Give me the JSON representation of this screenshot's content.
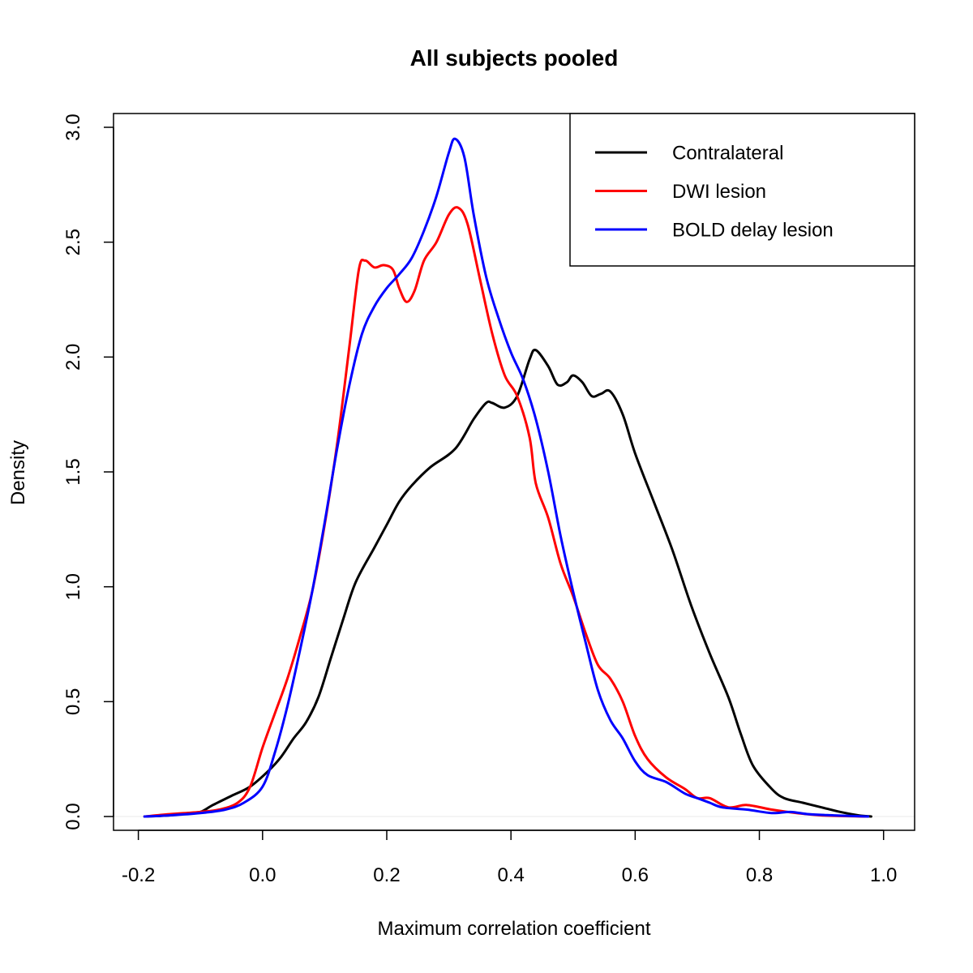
{
  "chart_data": {
    "type": "line",
    "title": "All subjects pooled",
    "xlabel": "Maximum correlation coefficient",
    "ylabel": "Density",
    "xlim": [
      -0.24,
      1.05
    ],
    "ylim": [
      -0.06,
      3.06
    ],
    "x_ticks": [
      -0.2,
      0.0,
      0.2,
      0.4,
      0.6,
      0.8,
      1.0
    ],
    "x_tick_labels": [
      "-0.2",
      "0.0",
      "0.2",
      "0.4",
      "0.6",
      "0.8",
      "1.0"
    ],
    "y_ticks": [
      0.0,
      0.5,
      1.0,
      1.5,
      2.0,
      2.5,
      3.0
    ],
    "y_tick_labels": [
      "0.0",
      "0.5",
      "1.0",
      "1.5",
      "2.0",
      "2.5",
      "3.0"
    ],
    "grid": false,
    "legend_position": "top-right",
    "baseline": 0,
    "series": [
      {
        "name": "Contralateral",
        "color": "#000000",
        "points": [
          [
            -0.19,
            0.0
          ],
          [
            -0.15,
            0.005
          ],
          [
            -0.12,
            0.015
          ],
          [
            -0.1,
            0.02
          ],
          [
            -0.08,
            0.05
          ],
          [
            -0.05,
            0.09
          ],
          [
            -0.02,
            0.13
          ],
          [
            0.01,
            0.2
          ],
          [
            0.03,
            0.26
          ],
          [
            0.05,
            0.34
          ],
          [
            0.07,
            0.41
          ],
          [
            0.09,
            0.52
          ],
          [
            0.11,
            0.69
          ],
          [
            0.13,
            0.86
          ],
          [
            0.15,
            1.02
          ],
          [
            0.18,
            1.17
          ],
          [
            0.2,
            1.27
          ],
          [
            0.22,
            1.37
          ],
          [
            0.24,
            1.44
          ],
          [
            0.27,
            1.52
          ],
          [
            0.31,
            1.6
          ],
          [
            0.34,
            1.73
          ],
          [
            0.36,
            1.8
          ],
          [
            0.37,
            1.8
          ],
          [
            0.39,
            1.78
          ],
          [
            0.41,
            1.83
          ],
          [
            0.43,
            1.99
          ],
          [
            0.44,
            2.03
          ],
          [
            0.46,
            1.96
          ],
          [
            0.475,
            1.88
          ],
          [
            0.49,
            1.89
          ],
          [
            0.5,
            1.92
          ],
          [
            0.515,
            1.89
          ],
          [
            0.53,
            1.83
          ],
          [
            0.545,
            1.84
          ],
          [
            0.56,
            1.85
          ],
          [
            0.58,
            1.75
          ],
          [
            0.6,
            1.58
          ],
          [
            0.63,
            1.37
          ],
          [
            0.66,
            1.16
          ],
          [
            0.69,
            0.92
          ],
          [
            0.72,
            0.71
          ],
          [
            0.75,
            0.52
          ],
          [
            0.77,
            0.36
          ],
          [
            0.79,
            0.22
          ],
          [
            0.82,
            0.12
          ],
          [
            0.84,
            0.08
          ],
          [
            0.87,
            0.06
          ],
          [
            0.9,
            0.04
          ],
          [
            0.93,
            0.02
          ],
          [
            0.96,
            0.005
          ],
          [
            0.98,
            0.0
          ]
        ]
      },
      {
        "name": "DWI lesion",
        "color": "#ff0000",
        "points": [
          [
            -0.19,
            0.0
          ],
          [
            -0.15,
            0.01
          ],
          [
            -0.1,
            0.02
          ],
          [
            -0.07,
            0.03
          ],
          [
            -0.04,
            0.06
          ],
          [
            -0.02,
            0.13
          ],
          [
            0.0,
            0.3
          ],
          [
            0.02,
            0.45
          ],
          [
            0.04,
            0.6
          ],
          [
            0.06,
            0.78
          ],
          [
            0.08,
            0.98
          ],
          [
            0.1,
            1.27
          ],
          [
            0.12,
            1.62
          ],
          [
            0.14,
            2.05
          ],
          [
            0.155,
            2.38
          ],
          [
            0.165,
            2.42
          ],
          [
            0.18,
            2.39
          ],
          [
            0.195,
            2.4
          ],
          [
            0.21,
            2.38
          ],
          [
            0.22,
            2.3
          ],
          [
            0.232,
            2.24
          ],
          [
            0.245,
            2.29
          ],
          [
            0.26,
            2.42
          ],
          [
            0.28,
            2.5
          ],
          [
            0.3,
            2.62
          ],
          [
            0.315,
            2.65
          ],
          [
            0.33,
            2.58
          ],
          [
            0.35,
            2.34
          ],
          [
            0.37,
            2.1
          ],
          [
            0.39,
            1.92
          ],
          [
            0.41,
            1.83
          ],
          [
            0.43,
            1.65
          ],
          [
            0.44,
            1.45
          ],
          [
            0.46,
            1.3
          ],
          [
            0.48,
            1.1
          ],
          [
            0.5,
            0.96
          ],
          [
            0.52,
            0.8
          ],
          [
            0.54,
            0.66
          ],
          [
            0.56,
            0.6
          ],
          [
            0.58,
            0.5
          ],
          [
            0.6,
            0.35
          ],
          [
            0.62,
            0.25
          ],
          [
            0.65,
            0.17
          ],
          [
            0.68,
            0.12
          ],
          [
            0.7,
            0.08
          ],
          [
            0.72,
            0.08
          ],
          [
            0.75,
            0.04
          ],
          [
            0.78,
            0.05
          ],
          [
            0.82,
            0.03
          ],
          [
            0.86,
            0.015
          ],
          [
            0.9,
            0.005
          ],
          [
            0.97,
            0.0
          ]
        ]
      },
      {
        "name": "BOLD delay lesion",
        "color": "#0000ff",
        "points": [
          [
            -0.19,
            0.0
          ],
          [
            -0.15,
            0.005
          ],
          [
            -0.1,
            0.015
          ],
          [
            -0.06,
            0.03
          ],
          [
            -0.03,
            0.06
          ],
          [
            0.0,
            0.13
          ],
          [
            0.02,
            0.28
          ],
          [
            0.04,
            0.48
          ],
          [
            0.06,
            0.72
          ],
          [
            0.08,
            0.98
          ],
          [
            0.1,
            1.28
          ],
          [
            0.12,
            1.6
          ],
          [
            0.14,
            1.88
          ],
          [
            0.16,
            2.1
          ],
          [
            0.18,
            2.22
          ],
          [
            0.2,
            2.3
          ],
          [
            0.22,
            2.36
          ],
          [
            0.24,
            2.43
          ],
          [
            0.26,
            2.55
          ],
          [
            0.28,
            2.7
          ],
          [
            0.3,
            2.89
          ],
          [
            0.31,
            2.95
          ],
          [
            0.325,
            2.87
          ],
          [
            0.34,
            2.62
          ],
          [
            0.36,
            2.35
          ],
          [
            0.38,
            2.17
          ],
          [
            0.4,
            2.02
          ],
          [
            0.42,
            1.9
          ],
          [
            0.44,
            1.73
          ],
          [
            0.46,
            1.5
          ],
          [
            0.48,
            1.22
          ],
          [
            0.5,
            0.98
          ],
          [
            0.52,
            0.76
          ],
          [
            0.54,
            0.55
          ],
          [
            0.56,
            0.42
          ],
          [
            0.58,
            0.34
          ],
          [
            0.6,
            0.24
          ],
          [
            0.62,
            0.18
          ],
          [
            0.65,
            0.15
          ],
          [
            0.68,
            0.1
          ],
          [
            0.7,
            0.08
          ],
          [
            0.72,
            0.06
          ],
          [
            0.74,
            0.04
          ],
          [
            0.78,
            0.03
          ],
          [
            0.82,
            0.015
          ],
          [
            0.85,
            0.02
          ],
          [
            0.88,
            0.01
          ],
          [
            0.92,
            0.005
          ],
          [
            0.975,
            0.0
          ]
        ]
      }
    ]
  }
}
